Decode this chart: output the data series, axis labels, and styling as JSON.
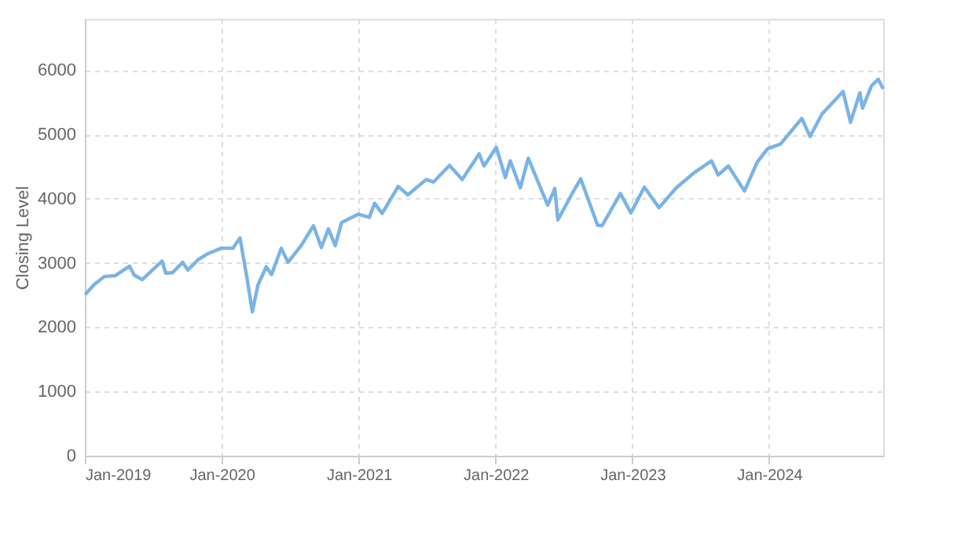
{
  "chart_data": {
    "type": "line",
    "ylabel": "Closing Level",
    "x": [
      "2019-01-02",
      "2019-01-25",
      "2019-02-22",
      "2019-03-22",
      "2019-04-30",
      "2019-05-13",
      "2019-06-03",
      "2019-07-26",
      "2019-08-05",
      "2019-08-23",
      "2019-09-19",
      "2019-10-03",
      "2019-10-30",
      "2019-11-27",
      "2019-12-31",
      "2020-01-31",
      "2020-02-19",
      "2020-03-09",
      "2020-03-23",
      "2020-04-07",
      "2020-04-29",
      "2020-05-13",
      "2020-06-08",
      "2020-06-26",
      "2020-07-31",
      "2020-09-02",
      "2020-09-23",
      "2020-10-12",
      "2020-10-30",
      "2020-11-16",
      "2020-12-31",
      "2021-01-29",
      "2021-02-12",
      "2021-03-04",
      "2021-04-16",
      "2021-05-12",
      "2021-06-30",
      "2021-07-19",
      "2021-08-31",
      "2021-10-04",
      "2021-11-18",
      "2021-12-01",
      "2022-01-03",
      "2022-01-27",
      "2022-02-09",
      "2022-03-08",
      "2022-03-29",
      "2022-05-20",
      "2022-06-08",
      "2022-06-16",
      "2022-07-29",
      "2022-08-16",
      "2022-09-30",
      "2022-10-12",
      "2022-11-30",
      "2022-12-28",
      "2023-02-02",
      "2023-03-13",
      "2023-04-28",
      "2023-06-16",
      "2023-07-31",
      "2023-08-18",
      "2023-09-14",
      "2023-10-27",
      "2023-11-30",
      "2023-12-28",
      "2024-01-31",
      "2024-03-28",
      "2024-04-19",
      "2024-05-21",
      "2024-07-16",
      "2024-08-05",
      "2024-08-30",
      "2024-09-06",
      "2024-09-30",
      "2024-10-18",
      "2024-10-31"
    ],
    "series": [
      {
        "color": "#7ab3e6",
        "values": [
          2510,
          2660,
          2790,
          2800,
          2950,
          2810,
          2740,
          3030,
          2840,
          2850,
          3010,
          2890,
          3050,
          3150,
          3230,
          3230,
          3390,
          2750,
          2240,
          2660,
          2940,
          2820,
          3230,
          3010,
          3270,
          3580,
          3240,
          3530,
          3270,
          3630,
          3760,
          3710,
          3930,
          3770,
          4190,
          4060,
          4300,
          4260,
          4520,
          4300,
          4700,
          4510,
          4800,
          4330,
          4590,
          4170,
          4630,
          3900,
          4160,
          3670,
          4130,
          4310,
          3590,
          3580,
          4080,
          3780,
          4180,
          3860,
          4170,
          4410,
          4590,
          4370,
          4510,
          4120,
          4570,
          4780,
          4850,
          5250,
          4970,
          5320,
          5670,
          5190,
          5650,
          5410,
          5760,
          5860,
          5710
        ]
      }
    ],
    "xlim": [
      "2019-01-01",
      "2024-10-31"
    ],
    "xticks": [
      {
        "value": "2019-01-01",
        "label": "Jan-2019"
      },
      {
        "value": "2020-01-01",
        "label": "Jan-2020"
      },
      {
        "value": "2021-01-01",
        "label": "Jan-2021"
      },
      {
        "value": "2022-01-01",
        "label": "Jan-2022"
      },
      {
        "value": "2023-01-01",
        "label": "Jan-2023"
      },
      {
        "value": "2024-01-01",
        "label": "Jan-2024"
      }
    ],
    "ylim": [
      0,
      6800
    ],
    "yticks": [
      0,
      1000,
      2000,
      3000,
      4000,
      5000,
      6000
    ],
    "grid": true,
    "line_style": "solid",
    "marker": "none"
  }
}
